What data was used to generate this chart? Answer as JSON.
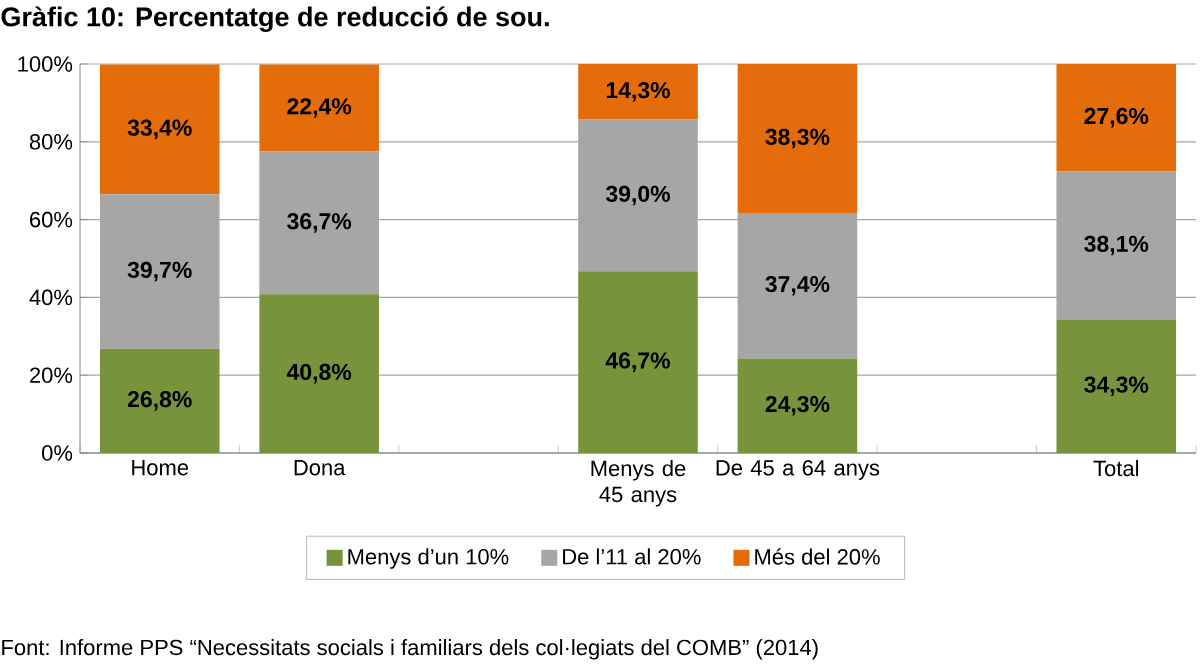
{
  "chart_data": {
    "type": "bar",
    "stacked": true,
    "title": "Gràfic 10: Percentatge de reducció de sou.",
    "categories": [
      "Home",
      "Dona",
      null,
      "Menys de 45 anys",
      "De 45 a 64 anys",
      null,
      "Total"
    ],
    "series": [
      {
        "name": "Menys d’un 10%",
        "color": "#77933c",
        "values": [
          26.8,
          40.8,
          null,
          46.7,
          24.3,
          null,
          34.3
        ],
        "value_labels": [
          "26,8%",
          "40,8%",
          null,
          "46,7%",
          "24,3%",
          null,
          "34,3%"
        ]
      },
      {
        "name": "De l’11 al 20%",
        "color": "#a6a6a6",
        "values": [
          39.7,
          36.7,
          null,
          39.0,
          37.4,
          null,
          38.1
        ],
        "value_labels": [
          "39,7%",
          "36,7%",
          null,
          "39,0%",
          "37,4%",
          null,
          "38,1%"
        ]
      },
      {
        "name": "Més del 20%",
        "color": "#e46c0a",
        "values": [
          33.4,
          22.4,
          null,
          14.3,
          38.3,
          null,
          27.6
        ],
        "value_labels": [
          "33,4%",
          "22,4%",
          null,
          "14,3%",
          "38,3%",
          null,
          "27,6%"
        ]
      }
    ],
    "ylim": [
      0,
      100
    ],
    "yticks": [
      {
        "value": 0,
        "label": "0%"
      },
      {
        "value": 20,
        "label": "20%"
      },
      {
        "value": 40,
        "label": "40%"
      },
      {
        "value": 60,
        "label": "60%"
      },
      {
        "value": 80,
        "label": "80%"
      },
      {
        "value": 100,
        "label": "100%"
      }
    ],
    "grid": "y",
    "legend": "bottom",
    "annotations": [
      "Font: Informe PPS “Necessitats socials i familiars dels col·legiats del COMB” (2014)"
    ]
  }
}
